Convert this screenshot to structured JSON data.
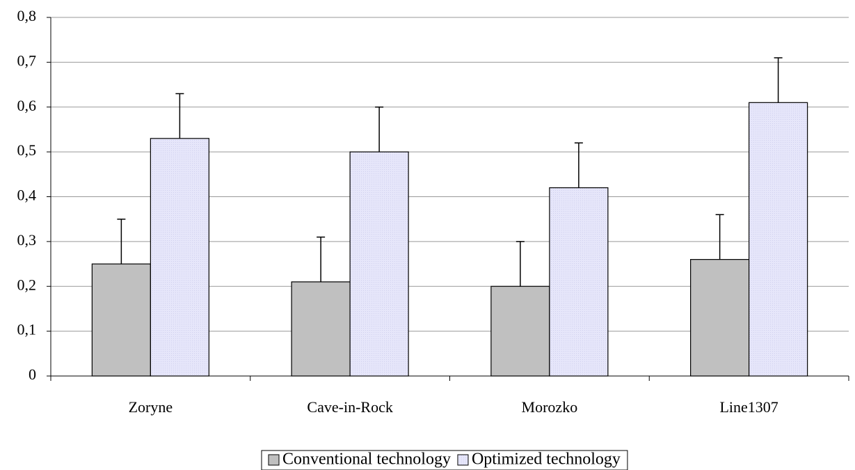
{
  "chart_data": {
    "type": "bar",
    "categories": [
      "Zoryne",
      "Cave-in-Rock",
      "Morozko",
      "Line1307"
    ],
    "series": [
      {
        "name": "Conventional technology",
        "color": "#c0c0c0",
        "values": [
          0.25,
          0.21,
          0.2,
          0.26
        ],
        "errors": [
          0.1,
          0.1,
          0.1,
          0.1
        ]
      },
      {
        "name": "Optimized technology",
        "color": "#e6e6fa",
        "values": [
          0.53,
          0.5,
          0.42,
          0.61
        ],
        "errors": [
          0.1,
          0.1,
          0.1,
          0.1
        ]
      }
    ],
    "ylim": [
      0,
      0.8
    ],
    "yticks": [
      0,
      {
        "value": 0.1,
        "label": "0,1"
      },
      {
        "value": 0.2,
        "label": "0,2"
      },
      {
        "value": 0.3,
        "label": "0,3"
      },
      {
        "value": 0.4,
        "label": "0,4"
      },
      {
        "value": 0.5,
        "label": "0,5"
      },
      {
        "value": 0.6,
        "label": "0,6"
      },
      {
        "value": 0.7,
        "label": "0,7"
      },
      {
        "value": 0.8,
        "label": "0,8"
      }
    ],
    "grid": true,
    "legend": "bottom"
  }
}
